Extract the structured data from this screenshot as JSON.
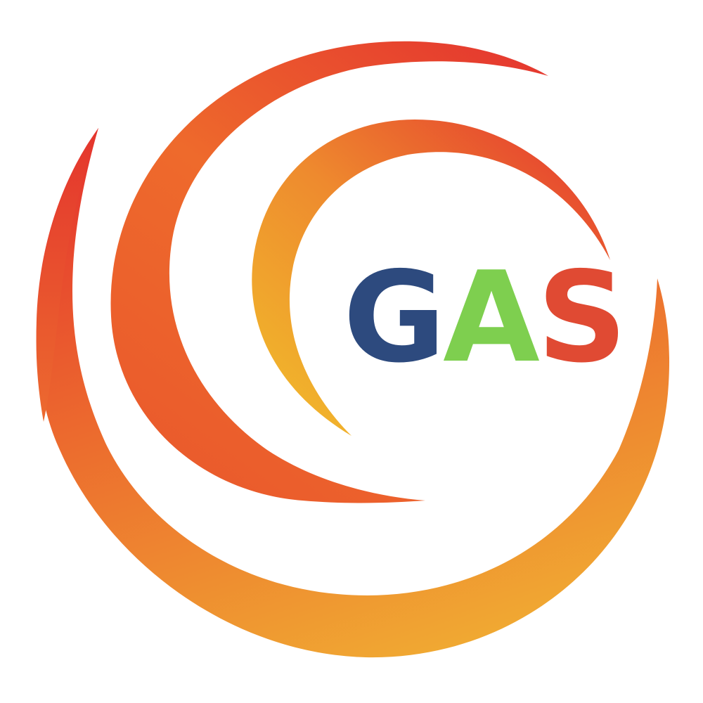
{
  "logo": {
    "letters": [
      "G",
      "A",
      "S"
    ],
    "letter_colors": [
      "#2d4a7e",
      "#7ecf4f",
      "#e04a33"
    ],
    "swirl_gradient": {
      "dark": "#e5372e",
      "mid": "#ee6a2d",
      "light": "#f0a32e"
    }
  }
}
